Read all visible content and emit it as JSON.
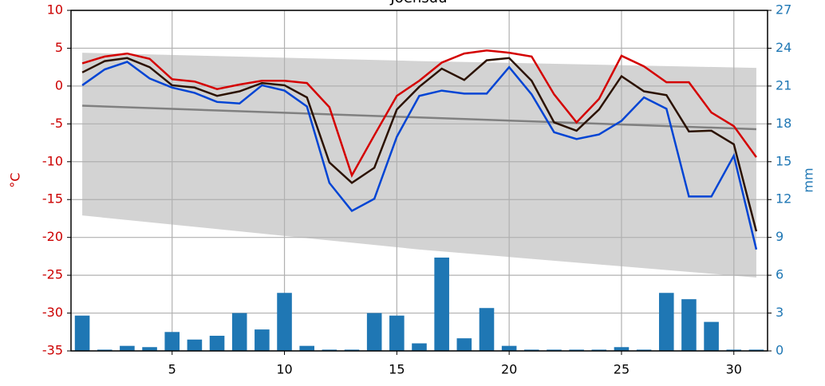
{
  "chart_data": {
    "type": "line",
    "title": "Joensuu",
    "ylabel": "°C",
    "y2label": "mm",
    "categories": [
      1,
      2,
      3,
      4,
      5,
      6,
      7,
      8,
      9,
      10,
      11,
      12,
      13,
      14,
      15,
      16,
      17,
      18,
      19,
      20,
      21,
      22,
      23,
      24,
      25,
      26,
      27,
      28,
      29,
      30,
      31
    ],
    "xlim": [
      0.5,
      31.5
    ],
    "xticks": [
      5,
      10,
      15,
      20,
      25,
      30
    ],
    "ylim": [
      -35,
      10
    ],
    "yticks": [
      -35,
      -30,
      -25,
      -20,
      -15,
      -10,
      -5,
      0,
      5,
      10
    ],
    "y2lim": [
      0,
      27
    ],
    "y2ticks": [
      0,
      3,
      6,
      9,
      12,
      15,
      18,
      21,
      24,
      27
    ],
    "grid": true,
    "ycolor": "#cc0000",
    "y2color": "#1f77b4",
    "band": {
      "x": [
        1,
        16,
        31
      ],
      "upper": [
        4.4,
        3.3,
        2.4
      ],
      "lower": [
        -17.1,
        -21.6,
        -25.3
      ],
      "color": "#d3d3d3"
    },
    "trend": {
      "x": [
        1,
        31
      ],
      "values": [
        -2.6,
        -5.7
      ],
      "color": "#808080"
    },
    "bars": {
      "axis": "y2",
      "color": "#1f77b4",
      "values": [
        2.8,
        0.1,
        0.4,
        0.3,
        1.5,
        0.9,
        1.2,
        3.0,
        1.7,
        4.6,
        0.4,
        0.1,
        0.1,
        3.0,
        2.8,
        0.6,
        7.4,
        1.0,
        3.4,
        0.4,
        0.1,
        0.1,
        0.1,
        0.1,
        0.3,
        0.1,
        4.6,
        4.1,
        2.3,
        0.1,
        0.1
      ]
    },
    "series": [
      {
        "color": "#d40000",
        "values": [
          3.0,
          3.9,
          4.3,
          3.6,
          0.9,
          0.6,
          -0.4,
          0.2,
          0.7,
          0.7,
          0.4,
          -2.8,
          -11.8,
          -6.5,
          -1.3,
          0.7,
          3.1,
          4.3,
          4.7,
          4.4,
          3.9,
          -1.1,
          -4.8,
          -1.7,
          4.0,
          2.6,
          0.5,
          0.5,
          -3.5,
          -5.3,
          -9.4
        ]
      },
      {
        "color": "#2b1200",
        "values": [
          1.8,
          3.3,
          3.7,
          2.5,
          0.1,
          -0.2,
          -1.3,
          -0.7,
          0.4,
          0.1,
          -1.5,
          -10.1,
          -12.8,
          -10.8,
          -3.1,
          -0.1,
          2.3,
          0.8,
          3.4,
          3.7,
          0.7,
          -4.8,
          -5.9,
          -3.1,
          1.3,
          -0.7,
          -1.2,
          -6.0,
          -5.9,
          -7.7,
          -19.2
        ]
      },
      {
        "color": "#0044d4",
        "values": [
          0.1,
          2.2,
          3.2,
          1.0,
          -0.2,
          -0.9,
          -2.1,
          -2.3,
          0.1,
          -0.6,
          -2.7,
          -12.8,
          -16.5,
          -14.9,
          -6.7,
          -1.3,
          -0.6,
          -1.0,
          -1.0,
          2.5,
          -1.1,
          -6.1,
          -7.0,
          -6.4,
          -4.6,
          -1.5,
          -3.0,
          -14.6,
          -14.6,
          -9.2,
          -21.6
        ]
      }
    ]
  }
}
